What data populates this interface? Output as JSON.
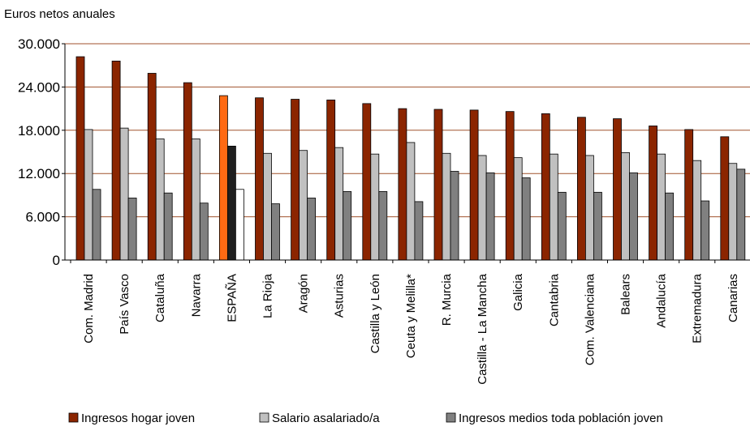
{
  "colors": {
    "gridline": "#a0522d",
    "axis": "#000000",
    "bar_stroke": "#000000"
  },
  "chart_data": {
    "type": "bar",
    "title": "",
    "xlabel": "",
    "ylabel": "Euros netos anuales",
    "ylim": [
      0,
      30000
    ],
    "yticks": [
      0,
      6000,
      12000,
      18000,
      24000,
      30000
    ],
    "ytick_labels": [
      "0",
      "6.000",
      "12.000",
      "18.000",
      "24.000",
      "30.000"
    ],
    "grid": true,
    "legend_position": "bottom",
    "categories": [
      "Com. Madrid",
      "País Vasco",
      "Cataluña",
      "Navarra",
      "ESPAÑA",
      "La Rioja",
      "Aragón",
      "Asturias",
      "Castilla y León",
      "Ceuta y Melilla*",
      "R. Murcia",
      "Castilla - La Mancha",
      "Galicia",
      "Cantabria",
      "Com. Valenciana",
      "Balears",
      "Andalucía",
      "Extremadura",
      "Canarias"
    ],
    "highlight_category": "ESPAÑA",
    "series": [
      {
        "name": "Ingresos hogar joven",
        "color": "#8b2500",
        "highlight_color": "#ff6a13",
        "values": [
          28200,
          27600,
          25900,
          24600,
          22800,
          22500,
          22300,
          22200,
          21700,
          21000,
          20900,
          20800,
          20600,
          20300,
          19800,
          19600,
          18600,
          18100,
          17100
        ]
      },
      {
        "name": "Salario asalariado/a",
        "color": "#c0c0c0",
        "highlight_color": "#1f1f1f",
        "values": [
          18100,
          18300,
          16800,
          16800,
          15800,
          14800,
          15200,
          15600,
          14700,
          16300,
          14800,
          14500,
          14200,
          14700,
          14500,
          14900,
          14700,
          13800,
          13400
        ]
      },
      {
        "name": "Ingresos medios toda población joven",
        "color": "#808080",
        "highlight_color": "#ffffff",
        "values": [
          9800,
          8600,
          9300,
          7900,
          9800,
          7800,
          8600,
          9500,
          9500,
          8100,
          12300,
          12100,
          11400,
          9400,
          9400,
          12100,
          9300,
          8200,
          12600
        ]
      }
    ]
  }
}
